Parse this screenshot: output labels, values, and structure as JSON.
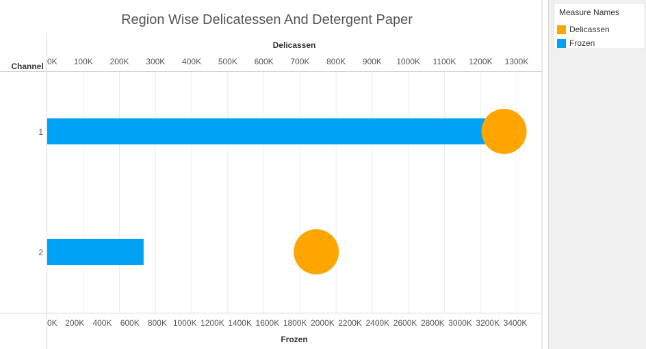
{
  "chart_data": {
    "type": "bar",
    "title": "Region Wise Delicatessen And Detergent Paper",
    "row_header": "Channel",
    "categories": [
      "1",
      "2"
    ],
    "series": [
      {
        "name": "Frozen",
        "mark": "bar",
        "axis": "bottom",
        "color": "#00a2f5",
        "values": [
          3350000,
          700000
        ]
      },
      {
        "name": "Delicassen",
        "mark": "circle",
        "axis": "top",
        "color": "#ffa500",
        "values": [
          1265000,
          745000
        ]
      }
    ],
    "top_axis": {
      "label": "Delicassen",
      "range": [
        0,
        1350000
      ],
      "ticks": [
        0,
        100000,
        200000,
        300000,
        400000,
        500000,
        600000,
        700000,
        800000,
        900000,
        1000000,
        1100000,
        1200000,
        1300000
      ],
      "tick_labels": [
        "0K",
        "100K",
        "200K",
        "300K",
        "400K",
        "500K",
        "600K",
        "700K",
        "800K",
        "900K",
        "1000K",
        "1100K",
        "1200K",
        "1300K"
      ]
    },
    "bottom_axis": {
      "label": "Frozen",
      "range": [
        0,
        3520000
      ],
      "ticks": [
        0,
        200000,
        400000,
        600000,
        800000,
        1000000,
        1200000,
        1400000,
        1600000,
        1800000,
        2000000,
        2200000,
        2400000,
        2600000,
        2800000,
        3000000,
        3200000,
        3400000
      ],
      "tick_labels": [
        "0K",
        "200K",
        "400K",
        "600K",
        "800K",
        "1000K",
        "1200K",
        "1400K",
        "1600K",
        "1800K",
        "2000K",
        "2200K",
        "2400K",
        "2600K",
        "2800K",
        "3000K",
        "3200K",
        "3400K"
      ]
    },
    "grid": true,
    "legend": {
      "title": "Measure Names",
      "placement": "right",
      "items": [
        {
          "label": "Delicassen",
          "color": "#ffa500"
        },
        {
          "label": "Frozen",
          "color": "#00a2f5"
        }
      ]
    }
  }
}
